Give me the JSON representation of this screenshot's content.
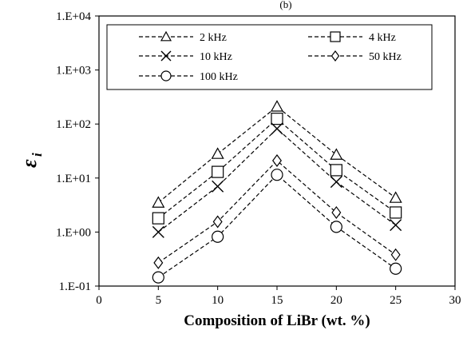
{
  "chart_data": {
    "type": "line",
    "top_caption": "(b)",
    "x": [
      5,
      10,
      15,
      20,
      25
    ],
    "xlabel": "Composition of LiBr (wt. %)",
    "ylabel_main": "ε",
    "ylabel_sub": "i",
    "xlim": [
      0,
      30
    ],
    "ylim": [
      0.1,
      10000
    ],
    "yscale": "log",
    "x_ticks": [
      "0",
      "5",
      "10",
      "15",
      "20",
      "25",
      "30"
    ],
    "y_ticks": [
      "1.E-01",
      "1.E+00",
      "1.E+01",
      "1.E+02",
      "1.E+03",
      "1.E+04"
    ],
    "grid": false,
    "legend_position": "top",
    "series": [
      {
        "name": "2 kHz",
        "marker": "triangle",
        "values": [
          3.5,
          28,
          210,
          27,
          4.3
        ]
      },
      {
        "name": "4 kHz",
        "marker": "square",
        "values": [
          1.8,
          13,
          125,
          14,
          2.3
        ]
      },
      {
        "name": "10 kHz",
        "marker": "x",
        "values": [
          1.0,
          7,
          82,
          8.5,
          1.35
        ]
      },
      {
        "name": "50 kHz",
        "marker": "diamond",
        "values": [
          0.27,
          1.55,
          21,
          2.3,
          0.38
        ]
      },
      {
        "name": "100 kHz",
        "marker": "circle",
        "values": [
          0.145,
          0.82,
          11.5,
          1.25,
          0.21
        ]
      }
    ]
  }
}
